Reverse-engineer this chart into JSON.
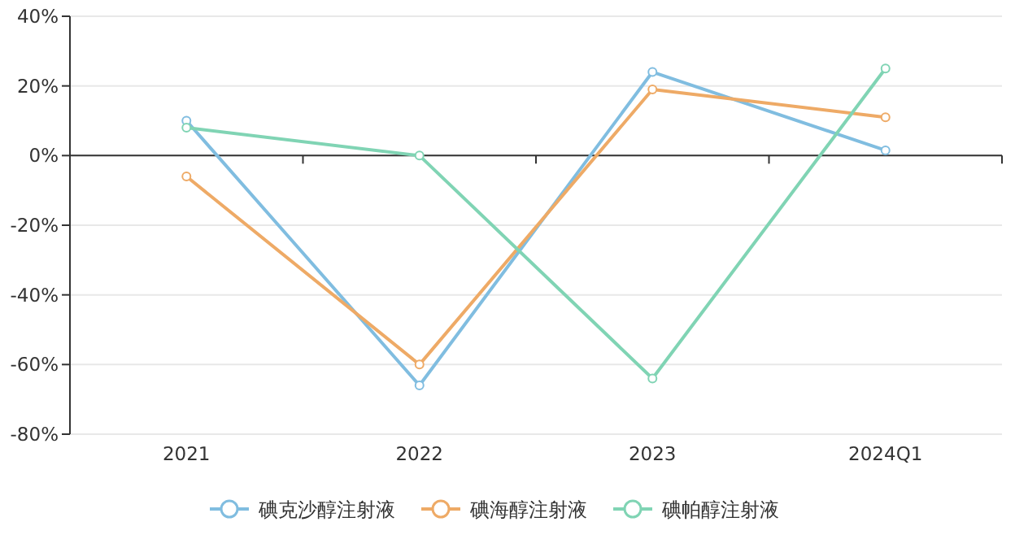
{
  "chart_data": {
    "type": "line",
    "categories": [
      "2021",
      "2022",
      "2023",
      "2024Q1"
    ],
    "series": [
      {
        "name": "碘克沙醇注射液",
        "color": "#80bde0",
        "values": [
          10,
          -66,
          24,
          1.5
        ]
      },
      {
        "name": "碘海醇注射液",
        "color": "#eeaa66",
        "values": [
          -6,
          -60,
          19,
          11
        ]
      },
      {
        "name": "碘帕醇注射液",
        "color": "#80d4b4",
        "values": [
          8,
          0,
          -64,
          25
        ]
      }
    ],
    "ylim": [
      -80,
      40
    ],
    "yticks": [
      {
        "value": -80,
        "label": "-80%"
      },
      {
        "value": -60,
        "label": "-60%"
      },
      {
        "value": -40,
        "label": "-40%"
      },
      {
        "value": -20,
        "label": "-20%"
      },
      {
        "value": 0,
        "label": "0%"
      },
      {
        "value": 20,
        "label": "20%"
      },
      {
        "value": 40,
        "label": "40%"
      }
    ],
    "grid": "y",
    "legend": "bottom",
    "marker": "circle",
    "line_style": "solid"
  }
}
